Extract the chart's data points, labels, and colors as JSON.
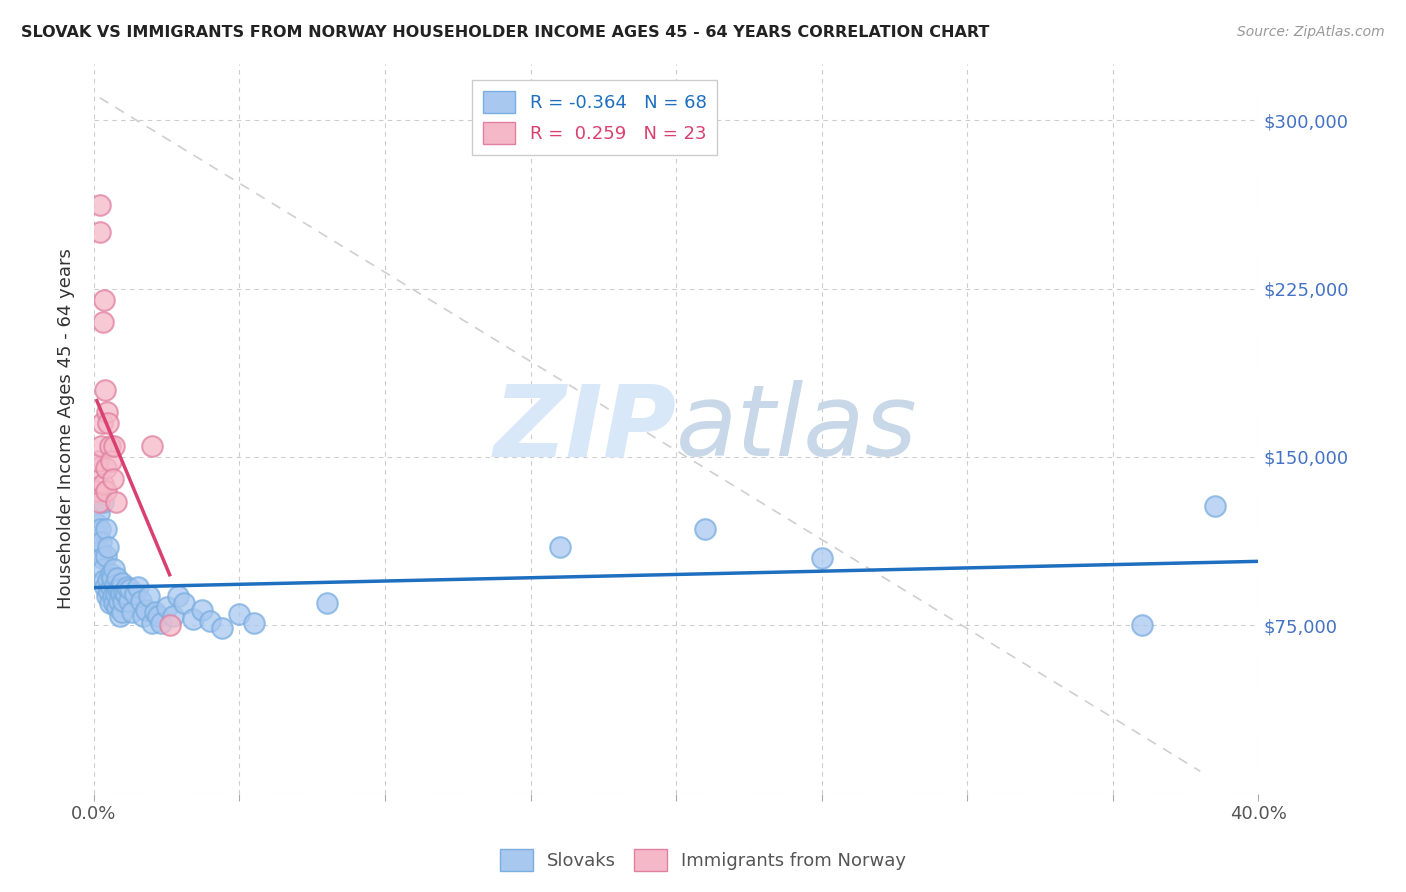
{
  "title": "SLOVAK VS IMMIGRANTS FROM NORWAY HOUSEHOLDER INCOME AGES 45 - 64 YEARS CORRELATION CHART",
  "source": "Source: ZipAtlas.com",
  "ylabel": "Householder Income Ages 45 - 64 years",
  "xlim": [
    0.0,
    0.4
  ],
  "ylim": [
    0,
    325000
  ],
  "yticks": [
    0,
    75000,
    150000,
    225000,
    300000
  ],
  "xticks": [
    0.0,
    0.05,
    0.1,
    0.15,
    0.2,
    0.25,
    0.3,
    0.35,
    0.4
  ],
  "xtick_labels": [
    "0.0%",
    "",
    "",
    "",
    "",
    "",
    "",
    "",
    "40.0%"
  ],
  "blue_scatter_color": "#A8C8F0",
  "blue_edge_color": "#7AAEE0",
  "pink_scatter_color": "#F5B8C8",
  "pink_edge_color": "#E080A0",
  "blue_line_color": "#1E6FBF",
  "pink_line_color": "#D94070",
  "r_blue": -0.364,
  "n_blue": 68,
  "r_pink": 0.259,
  "n_pink": 23,
  "watermark_color": "#D8E8F8",
  "background_color": "#ffffff",
  "grid_color": "#cccccc",
  "right_ytick_color": "#4472C4",
  "slovak_x": [
    0.0012,
    0.0015,
    0.0018,
    0.002,
    0.0022,
    0.0025,
    0.0028,
    0.003,
    0.0032,
    0.0035,
    0.0038,
    0.004,
    0.0042,
    0.0045,
    0.0048,
    0.005,
    0.0052,
    0.0055,
    0.0058,
    0.006,
    0.0063,
    0.0065,
    0.0068,
    0.007,
    0.0072,
    0.0075,
    0.0078,
    0.008,
    0.0083,
    0.0085,
    0.0088,
    0.009,
    0.0093,
    0.0095,
    0.0098,
    0.01,
    0.0105,
    0.011,
    0.0115,
    0.012,
    0.0125,
    0.013,
    0.014,
    0.015,
    0.016,
    0.017,
    0.018,
    0.019,
    0.02,
    0.021,
    0.022,
    0.023,
    0.025,
    0.027,
    0.029,
    0.031,
    0.034,
    0.037,
    0.04,
    0.044,
    0.05,
    0.055,
    0.08,
    0.16,
    0.21,
    0.25,
    0.36,
    0.385
  ],
  "slovak_y": [
    120000,
    115000,
    125000,
    108000,
    118000,
    112000,
    105000,
    130000,
    100000,
    95000,
    92000,
    118000,
    106000,
    88000,
    95000,
    110000,
    90000,
    85000,
    92000,
    98000,
    96000,
    88000,
    100000,
    85000,
    93000,
    89000,
    96000,
    83000,
    91000,
    86000,
    91000,
    79000,
    89000,
    94000,
    81000,
    86000,
    90000,
    89000,
    92000,
    86000,
    91000,
    81000,
    89000,
    92000,
    86000,
    79000,
    82000,
    88000,
    76000,
    81000,
    79000,
    76000,
    83000,
    79000,
    88000,
    85000,
    78000,
    82000,
    77000,
    74000,
    80000,
    76000,
    85000,
    110000,
    118000,
    105000,
    75000,
    128000
  ],
  "norway_x": [
    0.001,
    0.0012,
    0.0015,
    0.0017,
    0.002,
    0.0022,
    0.0025,
    0.0028,
    0.003,
    0.0032,
    0.0035,
    0.0038,
    0.004,
    0.0043,
    0.0046,
    0.005,
    0.0055,
    0.006,
    0.0065,
    0.007,
    0.0075,
    0.02,
    0.026
  ],
  "norway_y": [
    135000,
    145000,
    148000,
    130000,
    250000,
    262000,
    155000,
    165000,
    138000,
    210000,
    220000,
    180000,
    135000,
    145000,
    170000,
    165000,
    155000,
    148000,
    140000,
    155000,
    130000,
    155000,
    75000
  ]
}
